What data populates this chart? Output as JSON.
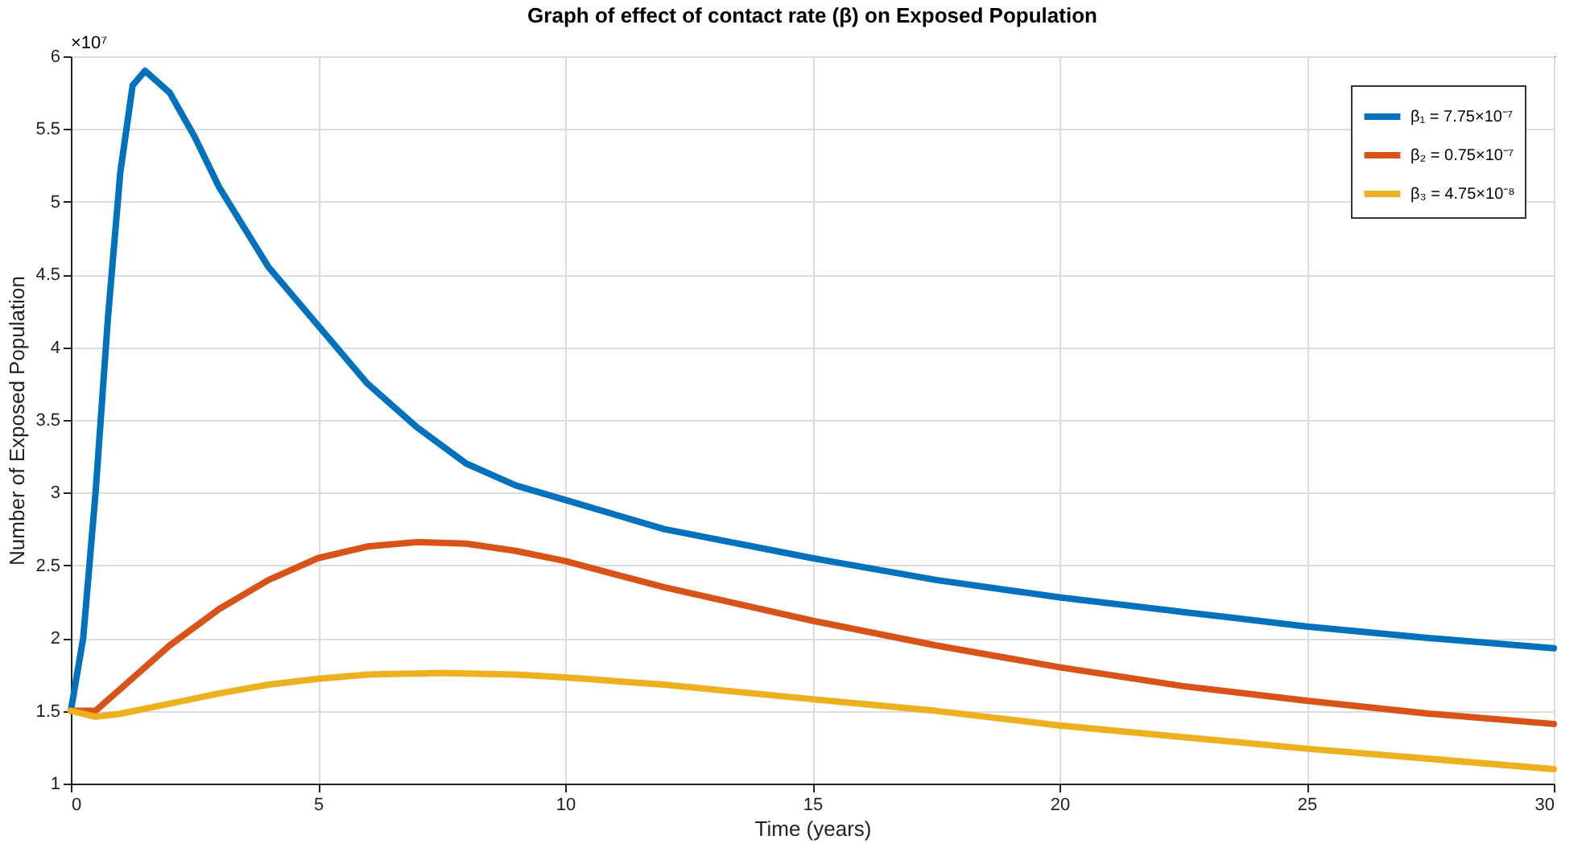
{
  "chart_data": {
    "type": "line",
    "title": "Graph of effect of contact rate (β) on Exposed Population",
    "xlabel": "Time (years)",
    "ylabel": "Number of Exposed Population",
    "annotations": [
      "×10⁷"
    ],
    "xlim": [
      0,
      30
    ],
    "xticks": [
      0,
      5,
      10,
      15,
      20,
      25,
      30
    ],
    "ylim": [
      1,
      6
    ],
    "yticks": [
      1,
      1.5,
      2,
      2.5,
      3,
      3.5,
      4,
      4.5,
      5,
      5.5,
      6
    ],
    "grid": true,
    "legend": "top right",
    "line_style": "solid",
    "marker": "none",
    "series": [
      {
        "name": "β₁ = 7.75×10⁻⁷",
        "color": "#0072bd",
        "x": [
          0,
          0.25,
          0.5,
          0.75,
          1,
          1.25,
          1.5,
          2,
          2.5,
          3,
          4,
          5,
          6,
          7,
          8,
          9,
          10,
          12,
          15,
          17.5,
          20,
          22.5,
          25,
          27.5,
          30
        ],
        "values": [
          1.5,
          2.0,
          3.0,
          4.2,
          5.2,
          5.8,
          5.9,
          5.75,
          5.45,
          5.1,
          4.55,
          4.15,
          3.75,
          3.45,
          3.2,
          3.05,
          2.95,
          2.75,
          2.55,
          2.4,
          2.28,
          2.18,
          2.08,
          2.0,
          1.93
        ]
      },
      {
        "name": "β₂ = 0.75×10⁻⁷",
        "color": "#d95319",
        "x": [
          0,
          0.5,
          1,
          2,
          3,
          4,
          5,
          6,
          7,
          8,
          9,
          10,
          12,
          15,
          17.5,
          20,
          22.5,
          25,
          27.5,
          30
        ],
        "values": [
          1.5,
          1.5,
          1.65,
          1.95,
          2.2,
          2.4,
          2.55,
          2.63,
          2.66,
          2.65,
          2.6,
          2.53,
          2.35,
          2.12,
          1.95,
          1.8,
          1.67,
          1.57,
          1.48,
          1.41
        ]
      },
      {
        "name": "β₃ = 4.75×10⁻⁸",
        "color": "#edb120",
        "x": [
          0,
          0.5,
          1,
          2,
          3,
          4,
          5,
          6,
          7.5,
          9,
          10,
          12,
          15,
          17.5,
          20,
          22.5,
          25,
          27.5,
          30
        ],
        "values": [
          1.5,
          1.46,
          1.48,
          1.55,
          1.62,
          1.68,
          1.72,
          1.75,
          1.76,
          1.75,
          1.73,
          1.68,
          1.58,
          1.5,
          1.4,
          1.32,
          1.24,
          1.17,
          1.1
        ]
      }
    ]
  }
}
